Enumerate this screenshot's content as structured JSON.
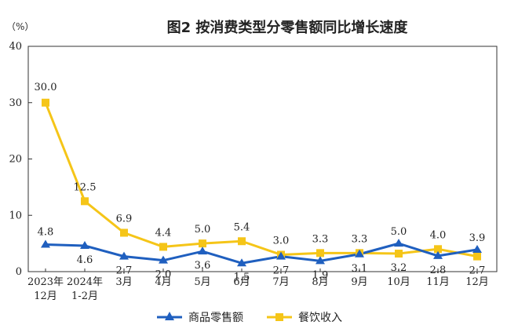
{
  "chart_data": {
    "type": "line",
    "title": "图2  按消费类型分零售额同比增长速度",
    "unit": "（%）",
    "ylim": [
      0,
      40
    ],
    "yticks": [
      "0",
      "10",
      "20",
      "30",
      "40"
    ],
    "categories": [
      [
        "2023年",
        "12月"
      ],
      [
        "2024年",
        "1-2月"
      ],
      [
        "3月"
      ],
      [
        "4月"
      ],
      [
        "5月"
      ],
      [
        "6月"
      ],
      [
        "7月"
      ],
      [
        "8月"
      ],
      [
        "9月"
      ],
      [
        "10月"
      ],
      [
        "11月"
      ],
      [
        "12月"
      ]
    ],
    "series": [
      {
        "name": "商品零售额",
        "color": "#1f5fbf",
        "marker": "triangle",
        "values": [
          4.8,
          4.6,
          2.7,
          2.0,
          3.6,
          1.5,
          2.7,
          1.9,
          3.1,
          5.0,
          2.8,
          3.9
        ],
        "labels": [
          "4.8",
          "4.6",
          "2.7",
          "2.0",
          "3.6",
          "1.5",
          "2.7",
          "1.9",
          "3.1",
          "5.0",
          "2.8",
          "3.9"
        ]
      },
      {
        "name": "餐饮收入",
        "color": "#f5c518",
        "marker": "square",
        "values": [
          30.0,
          12.5,
          6.9,
          4.4,
          5.0,
          5.4,
          3.0,
          3.3,
          3.3,
          3.2,
          4.0,
          2.7
        ],
        "labels": [
          "30.0",
          "12.5",
          "6.9",
          "4.4",
          "5.0",
          "5.4",
          "3.0",
          "3.3",
          "3.3",
          "3.2",
          "4.0",
          "2.7"
        ]
      }
    ],
    "grid": false,
    "legend": "bottom-center"
  }
}
